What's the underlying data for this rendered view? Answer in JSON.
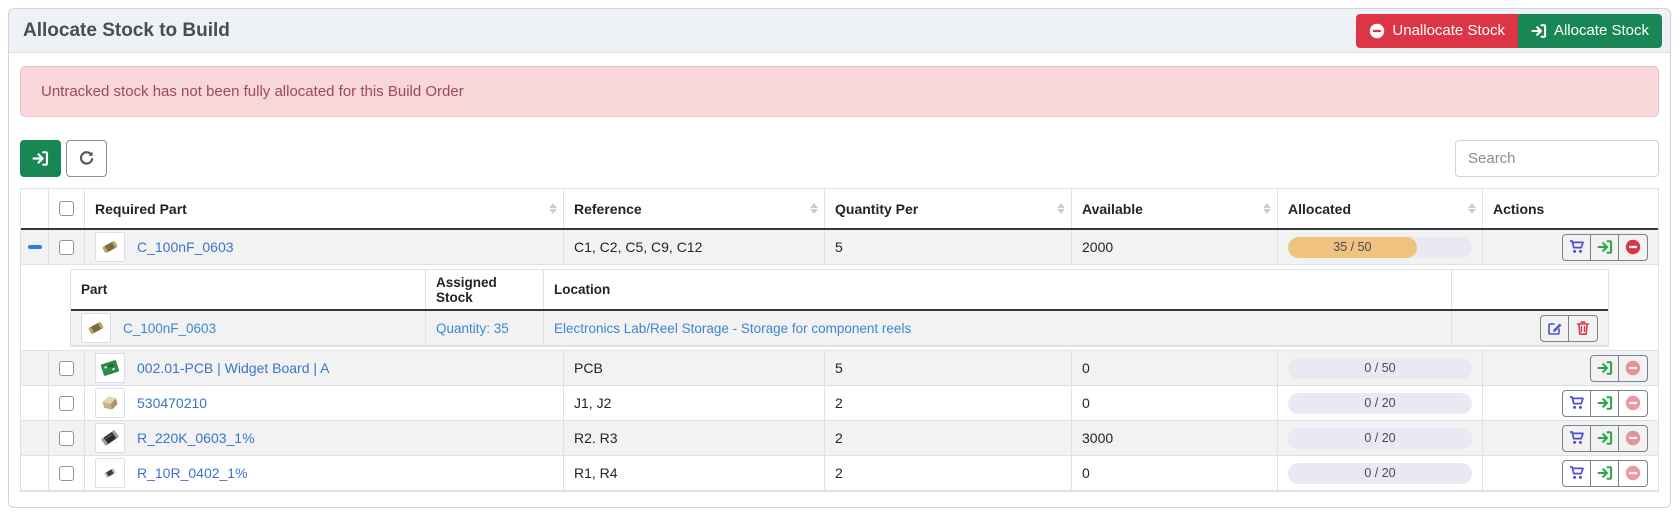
{
  "header": {
    "title": "Allocate Stock to Build",
    "unallocate_label": "Unallocate Stock",
    "allocate_label": "Allocate Stock"
  },
  "alert": {
    "message": "Untracked stock has not been fully allocated for this Build Order"
  },
  "toolbar": {
    "search_placeholder": "Search"
  },
  "colors": {
    "danger": "#dc3545",
    "success": "#198754",
    "cart_blue": "#4d4fd0",
    "progress_fill": "#efc27f",
    "alert_bg": "#f8d7da",
    "link_blue": "#3b74cb"
  },
  "table": {
    "columns": {
      "part": "Required Part",
      "reference": "Reference",
      "quantity_per": "Quantity Per",
      "available": "Available",
      "allocated": "Allocated",
      "actions": "Actions"
    },
    "rows": [
      {
        "part": "C_100nF_0603",
        "reference": "C1, C2, C5, C9, C12",
        "quantity_per": "5",
        "available": "2000",
        "allocated_text": "35 / 50",
        "allocated_percent": 70
      },
      {
        "part": "002.01-PCB | Widget Board | A",
        "reference": "PCB",
        "quantity_per": "5",
        "available": "0",
        "allocated_text": "0 / 50",
        "allocated_percent": 0
      },
      {
        "part": "530470210",
        "reference": "J1, J2",
        "quantity_per": "2",
        "available": "0",
        "allocated_text": "0 / 20",
        "allocated_percent": 0
      },
      {
        "part": "R_220K_0603_1%",
        "reference": "R2. R3",
        "quantity_per": "2",
        "available": "3000",
        "allocated_text": "0 / 20",
        "allocated_percent": 0
      },
      {
        "part": "R_10R_0402_1%",
        "reference": "R1, R4",
        "quantity_per": "2",
        "available": "0",
        "allocated_text": "0 / 20",
        "allocated_percent": 0
      }
    ]
  },
  "subtable": {
    "columns": {
      "part": "Part",
      "assigned": "Assigned Stock",
      "location": "Location"
    },
    "row": {
      "part": "C_100nF_0603",
      "assigned": "Quantity: 35",
      "location": "Electronics Lab/Reel Storage - Storage for component reels"
    }
  }
}
